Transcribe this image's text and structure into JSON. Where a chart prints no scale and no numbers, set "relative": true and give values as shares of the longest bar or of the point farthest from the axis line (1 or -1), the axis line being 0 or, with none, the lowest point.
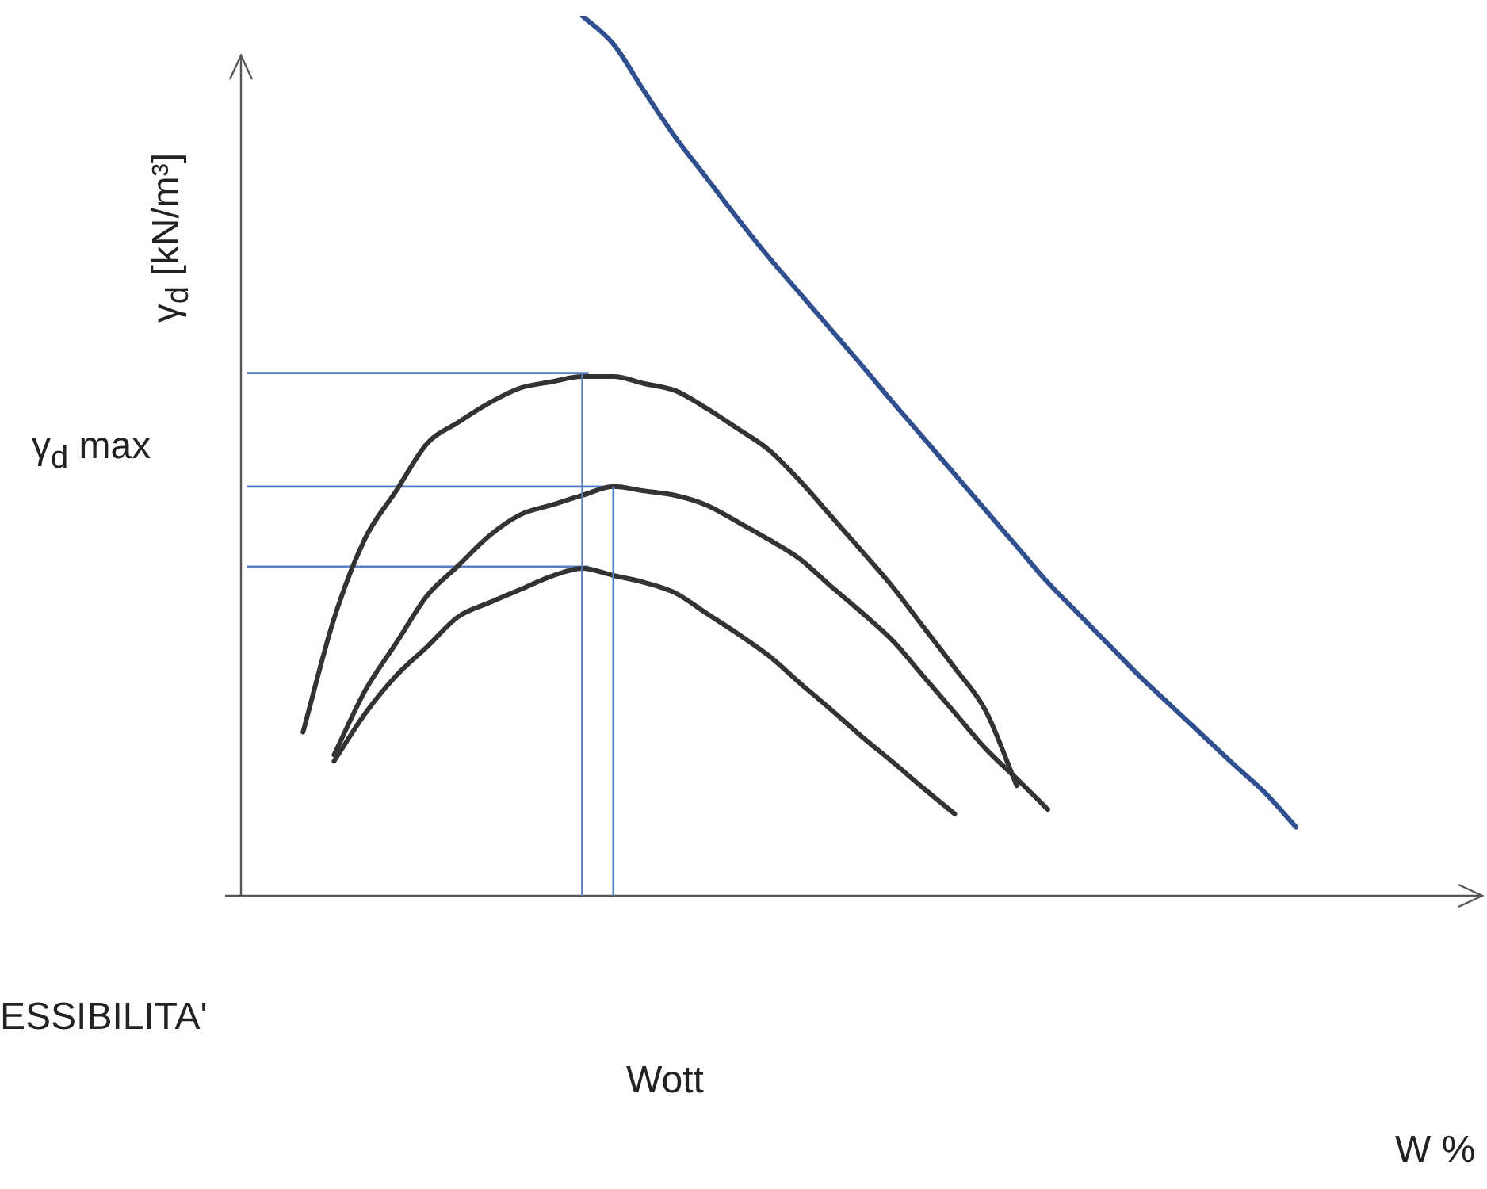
{
  "chart_data": {
    "type": "line",
    "relative": true,
    "ylabel": "γ$_{d}$ [kN/m³]",
    "annotations": [
      "γ$_{d}$ max",
      "Wott",
      "ESSIBILITA'",
      "W %"
    ],
    "grid": false,
    "legend": false,
    "marker": "none",
    "line_style": "solid",
    "categories": [
      null,
      null,
      null,
      null,
      null,
      null,
      null,
      null,
      null,
      null,
      null,
      null,
      null,
      null,
      null,
      null,
      null,
      null,
      null,
      null,
      null,
      null,
      null,
      null,
      null,
      null,
      null,
      null,
      null,
      null,
      null,
      null,
      null,
      null,
      null,
      null,
      null,
      null,
      null,
      null,
      null
    ],
    "series": [
      {
        "color": "#333333",
        "values": [
          null,
          null,
          0.186,
          0.315,
          0.406,
          0.46,
          0.514,
          0.538,
          0.56,
          0.577,
          0.584,
          0.59,
          0.59,
          0.582,
          0.574,
          0.554,
          0.531,
          0.507,
          0.472,
          0.432,
          0.392,
          0.351,
          0.305,
          0.259,
          0.21,
          0.125,
          null,
          null,
          null,
          null,
          null,
          null,
          null,
          null,
          null,
          null,
          null,
          null,
          null,
          null,
          null
        ]
      },
      {
        "color": "#333333",
        "values": [
          null,
          null,
          null,
          0.16,
          0.233,
          0.287,
          0.341,
          0.375,
          0.409,
          0.433,
          0.444,
          0.455,
          0.465,
          0.46,
          0.455,
          0.444,
          0.425,
          0.405,
          0.383,
          0.352,
          0.322,
          0.29,
          0.249,
          0.208,
          0.167,
          0.133,
          0.098,
          null,
          null,
          null,
          null,
          null,
          null,
          null,
          null,
          null,
          null,
          null,
          null,
          null,
          null
        ]
      },
      {
        "color": "#333333",
        "values": [
          null,
          null,
          null,
          0.153,
          0.207,
          0.25,
          0.283,
          0.317,
          0.333,
          0.348,
          0.363,
          0.372,
          0.364,
          0.356,
          0.344,
          0.321,
          0.298,
          0.273,
          0.242,
          0.212,
          0.181,
          0.152,
          0.122,
          0.093,
          null,
          null,
          null,
          null,
          null,
          null,
          null,
          null,
          null,
          null,
          null,
          null,
          null,
          null,
          null,
          null,
          null
        ]
      },
      {
        "color": "#2f4f8f",
        "values": [
          null,
          null,
          null,
          null,
          null,
          null,
          null,
          null,
          null,
          null,
          null,
          1.0,
          0.968,
          0.914,
          0.862,
          0.816,
          0.77,
          0.726,
          0.685,
          0.644,
          0.603,
          0.561,
          0.52,
          0.479,
          0.438,
          0.397,
          0.356,
          0.32,
          0.284,
          0.248,
          0.215,
          0.182,
          0.149,
          0.117,
          0.078,
          null,
          null,
          null,
          null,
          null,
          null
        ]
      }
    ],
    "ref_lines": [
      {
        "axis": "y",
        "value": 0.594,
        "color": "#5b7fc4"
      },
      {
        "axis": "y",
        "value": 0.465,
        "color": "#5b7fc4"
      },
      {
        "axis": "y",
        "value": 0.374,
        "color": "#5b7fc4"
      }
    ]
  }
}
